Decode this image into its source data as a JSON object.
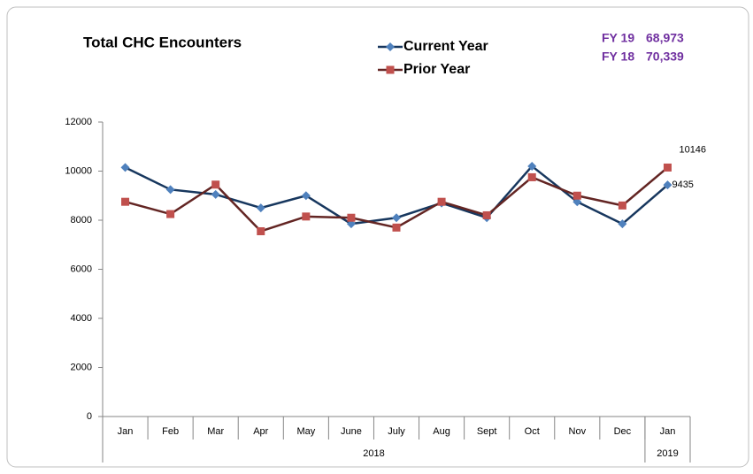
{
  "chart_data": {
    "type": "line",
    "title": "Total CHC Encounters",
    "annotations": [
      {
        "label": "FY 19",
        "value": "68,973"
      },
      {
        "label": "FY 18",
        "value": "70,339"
      }
    ],
    "annotation_color": "#7030a0",
    "categories": [
      "Jan",
      "Feb",
      "Mar",
      "Apr",
      "May",
      "June",
      "July",
      "Aug",
      "Sept",
      "Oct",
      "Nov",
      "Dec",
      "Jan"
    ],
    "category_groups": [
      {
        "label": "2018",
        "count": 12
      },
      {
        "label": "2019",
        "count": 1
      }
    ],
    "series": [
      {
        "name": "Current Year",
        "color": "#17375e",
        "marker_color": "#4f81bd",
        "marker": "diamond",
        "values": [
          10150,
          9250,
          9050,
          8500,
          9000,
          7850,
          8100,
          8700,
          8100,
          10200,
          8750,
          7850,
          9435
        ]
      },
      {
        "name": "Prior Year",
        "color": "#632523",
        "marker_color": "#c0504d",
        "marker": "square",
        "values": [
          8750,
          8250,
          9450,
          7550,
          8150,
          8100,
          7700,
          8750,
          8200,
          9750,
          9000,
          8600,
          10146
        ]
      }
    ],
    "ylim": [
      0,
      12000
    ],
    "yticks": [
      0,
      2000,
      4000,
      6000,
      8000,
      10000,
      12000
    ],
    "grid": false
  }
}
